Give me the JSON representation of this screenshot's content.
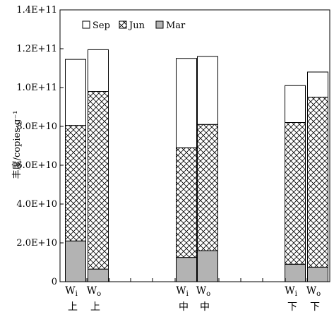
{
  "chart_data": {
    "type": "bar",
    "stacked": true,
    "ylabel": "丰度/copies·g⁻¹",
    "ylim": [
      0,
      140000000000
    ],
    "ytick_values": [
      0,
      20000000000,
      40000000000,
      60000000000,
      80000000000,
      100000000000,
      120000000000,
      140000000000
    ],
    "ytick_labels": [
      "0",
      "2.0E+10",
      "4.0E+10",
      "6.0E+10",
      "8.0E+10",
      "1.0E+11",
      "1.2E+11",
      "1.4E+11"
    ],
    "groups": [
      "上",
      "中",
      "下"
    ],
    "categories": [
      {
        "main": "W",
        "sub": "i",
        "group": "上"
      },
      {
        "main": "W",
        "sub": "o",
        "group": "上"
      },
      {
        "main": "W",
        "sub": "i",
        "group": "中"
      },
      {
        "main": "W",
        "sub": "o",
        "group": "中"
      },
      {
        "main": "W",
        "sub": "i",
        "group": "下"
      },
      {
        "main": "W",
        "sub": "o",
        "group": "下"
      }
    ],
    "series": [
      {
        "name": "Mar",
        "pattern": "gray",
        "color": "#b3b3b3",
        "values": [
          21000000000,
          6500000000,
          12500000000,
          16000000000,
          9000000000,
          7500000000
        ]
      },
      {
        "name": "Jun",
        "pattern": "crosshatch",
        "color": "#ffffff",
        "values": [
          59500000000,
          91500000000,
          56500000000,
          65000000000,
          73000000000,
          87500000000
        ]
      },
      {
        "name": "Sep",
        "pattern": "white",
        "color": "#ffffff",
        "values": [
          34000000000,
          21500000000,
          46000000000,
          35000000000,
          19000000000,
          13000000000
        ]
      }
    ],
    "legend": {
      "order": [
        "Sep",
        "Jun",
        "Mar"
      ],
      "placement": "top-left"
    },
    "grid": false
  }
}
